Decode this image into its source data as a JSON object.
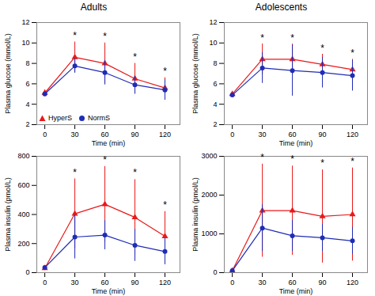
{
  "chart_data": [
    {
      "type": "line",
      "title": "Adults",
      "xlabel": "Time (min)",
      "ylabel": "Plasma glucose (mmol/L)",
      "x": [
        0,
        30,
        60,
        90,
        120
      ],
      "xlim": [
        -8,
        135
      ],
      "xticks": [
        0,
        30,
        60,
        90,
        120
      ],
      "ylim": [
        2,
        12
      ],
      "yticks": [
        2,
        4,
        6,
        8,
        10,
        12
      ],
      "grid": false,
      "legend": "lower left",
      "series": [
        {
          "name": "HyperS",
          "color": "#e8191a",
          "marker": "triangle",
          "values": [
            5.1,
            8.6,
            8.0,
            6.5,
            5.6
          ],
          "errors": [
            0.3,
            1.5,
            2.0,
            1.5,
            1.0
          ]
        },
        {
          "name": "NormS",
          "color": "#1f2cb5",
          "marker": "circle",
          "values": [
            5.0,
            7.75,
            7.1,
            5.9,
            5.4
          ],
          "errors": [
            0.2,
            0.7,
            1.2,
            0.9,
            1.0
          ]
        }
      ],
      "annotations": [
        {
          "text": "*",
          "x": 30,
          "y": 10.4
        },
        {
          "text": "*",
          "x": 60,
          "y": 10.3
        },
        {
          "text": "*",
          "x": 90,
          "y": 8.3
        },
        {
          "text": "*",
          "x": 120,
          "y": 6.9
        }
      ]
    },
    {
      "type": "line",
      "title": "Adolescents",
      "xlabel": "Time (min)",
      "ylabel": "Plasma glucose (mmol/L)",
      "x": [
        0,
        30,
        60,
        90,
        120
      ],
      "xlim": [
        -8,
        135
      ],
      "xticks": [
        0,
        30,
        60,
        90,
        120
      ],
      "ylim": [
        2,
        12
      ],
      "yticks": [
        2,
        4,
        6,
        8,
        10,
        12
      ],
      "grid": false,
      "legend": false,
      "series": [
        {
          "name": "HyperS",
          "color": "#e8191a",
          "marker": "triangle",
          "values": [
            5.0,
            8.4,
            8.4,
            7.9,
            7.4
          ],
          "errors": [
            0.2,
            1.5,
            1.5,
            1.0,
            1.0
          ]
        },
        {
          "name": "NormS",
          "color": "#1f2cb5",
          "marker": "circle",
          "values": [
            4.9,
            7.55,
            7.3,
            7.1,
            6.8
          ],
          "errors": [
            0.15,
            1.5,
            2.5,
            1.5,
            1.5
          ]
        }
      ],
      "annotations": [
        {
          "text": "*",
          "x": 30,
          "y": 10.2
        },
        {
          "text": "*",
          "x": 60,
          "y": 10.2
        },
        {
          "text": "*",
          "x": 90,
          "y": 9.2
        },
        {
          "text": "*",
          "x": 120,
          "y": 8.7
        }
      ]
    },
    {
      "type": "line",
      "xlabel": "Time (min)",
      "ylabel": "Plasma insulin (pmol/L)",
      "x": [
        0,
        30,
        60,
        90,
        120
      ],
      "xlim": [
        -8,
        135
      ],
      "xticks": [
        0,
        30,
        60,
        90,
        120
      ],
      "ylim": [
        0,
        800
      ],
      "yticks": [
        0,
        200,
        400,
        600,
        800
      ],
      "grid": false,
      "legend": false,
      "series": [
        {
          "name": "HyperS",
          "color": "#e8191a",
          "marker": "triangle",
          "values": [
            30,
            405,
            470,
            380,
            250
          ],
          "errors": [
            15,
            240,
            260,
            260,
            170
          ]
        },
        {
          "name": "NormS",
          "color": "#1f2cb5",
          "marker": "circle",
          "values": [
            35,
            245,
            258,
            188,
            145
          ],
          "errors": [
            10,
            150,
            100,
            110,
            90
          ]
        }
      ],
      "annotations": [
        {
          "text": "*",
          "x": 30,
          "y": 669
        },
        {
          "text": "*",
          "x": 60,
          "y": 754
        },
        {
          "text": "*",
          "x": 90,
          "y": 664
        },
        {
          "text": "*",
          "x": 120,
          "y": 444
        }
      ]
    },
    {
      "type": "line",
      "xlabel": "Time (min)",
      "ylabel": "Plasma insulin (pmol/L)",
      "x": [
        0,
        30,
        60,
        90,
        120
      ],
      "xlim": [
        -8,
        135
      ],
      "xticks": [
        0,
        30,
        60,
        90,
        120
      ],
      "ylim": [
        0,
        3000
      ],
      "yticks": [
        0,
        1000,
        2000,
        3000
      ],
      "grid": false,
      "legend": false,
      "series": [
        {
          "name": "HyperS",
          "color": "#e8191a",
          "marker": "triangle",
          "values": [
            50,
            1600,
            1600,
            1450,
            1500
          ],
          "errors": [
            20,
            1200,
            1150,
            1200,
            1200
          ]
        },
        {
          "name": "NormS",
          "color": "#1f2cb5",
          "marker": "circle",
          "values": [
            50,
            1150,
            950,
            900,
            820
          ],
          "errors": [
            20,
            600,
            400,
            350,
            350
          ]
        }
      ],
      "annotations": [
        {
          "text": "*",
          "x": 30,
          "y": 2890
        },
        {
          "text": "*",
          "x": 60,
          "y": 2840
        },
        {
          "text": "*",
          "x": 90,
          "y": 2740
        },
        {
          "text": "*",
          "x": 120,
          "y": 2790
        }
      ]
    }
  ]
}
